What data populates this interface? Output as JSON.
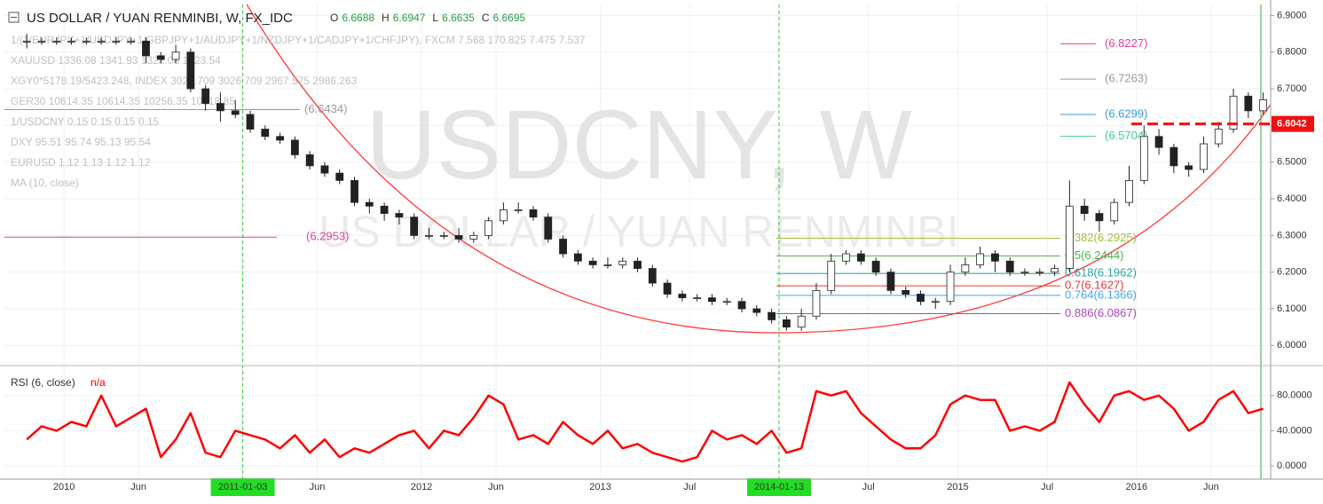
{
  "chart_data": [
    {
      "type": "candlestick",
      "title": "US DOLLAR / YUAN RENMINBI, W, FX_IDC",
      "ohlc": [
        {
          "label": "O",
          "value": 6.6688
        },
        {
          "label": "H",
          "value": 6.6947
        },
        {
          "label": "L",
          "value": 6.6635
        },
        {
          "label": "C",
          "value": 6.6695
        }
      ],
      "watermark": "USDCNY, W",
      "watermark_subtitle": "US DOLLAR / YUAN RENMINBI",
      "compare_legend": [
        "1/(1/EURJPY+1/USDJPY+1/GBPJPY+1/AUDJPY+1/NZDJPY+1/CADJPY+1/CHFJPY), FXCM  7.568  170.825  7.475  7.537",
        "XAUUSD  1336.08  1341.93  1322.08  1323.54",
        "XGY0*5178.19/5423.248, INDEX  3026.709  3026.709  2967.575  2986.263",
        "GER30  10614.35  10614.35  10256.35  10318.85",
        "1/USDCNY  0.15  0.15  0.15  0.15",
        "DXY  95.51  95.74  95.13  95.54",
        "EURUSD  1.12  1.13  1.12  1.12",
        "MA (10, close)"
      ],
      "x": [
        "2009-10",
        "2009-11",
        "2009-12",
        "2010-01",
        "2010-02",
        "2010-03",
        "2010-04",
        "2010-05",
        "2010-06",
        "2010-07",
        "2010-08",
        "2010-09",
        "2010-10",
        "2010-11",
        "2010-12",
        "2011-01",
        "2011-02",
        "2011-03",
        "2011-04",
        "2011-05",
        "2011-06",
        "2011-07",
        "2011-08",
        "2011-09",
        "2011-10",
        "2011-11",
        "2011-12",
        "2012-01",
        "2012-02",
        "2012-03",
        "2012-04",
        "2012-05",
        "2012-06",
        "2012-07",
        "2012-08",
        "2012-09",
        "2012-10",
        "2012-11",
        "2012-12",
        "2013-01",
        "2013-02",
        "2013-03",
        "2013-04",
        "2013-05",
        "2013-06",
        "2013-07",
        "2013-08",
        "2013-09",
        "2013-10",
        "2013-11",
        "2013-12",
        "2014-01",
        "2014-02",
        "2014-03",
        "2014-04",
        "2014-05",
        "2014-06",
        "2014-07",
        "2014-08",
        "2014-09",
        "2014-10",
        "2014-11",
        "2014-12",
        "2015-01",
        "2015-02",
        "2015-03",
        "2015-04",
        "2015-05",
        "2015-06",
        "2015-07",
        "2015-08",
        "2015-09",
        "2015-10",
        "2015-11",
        "2015-12",
        "2016-01",
        "2016-02",
        "2016-03",
        "2016-04",
        "2016-05",
        "2016-06",
        "2016-07",
        "2016-08",
        "2016-09"
      ],
      "open": [
        6.83,
        6.83,
        6.83,
        6.83,
        6.83,
        6.83,
        6.83,
        6.83,
        6.83,
        6.79,
        6.78,
        6.8,
        6.7,
        6.66,
        6.64,
        6.63,
        6.59,
        6.57,
        6.56,
        6.52,
        6.49,
        6.47,
        6.45,
        6.39,
        6.38,
        6.36,
        6.35,
        6.3,
        6.3,
        6.3,
        6.29,
        6.3,
        6.34,
        6.37,
        6.37,
        6.35,
        6.29,
        6.25,
        6.23,
        6.22,
        6.22,
        6.23,
        6.21,
        6.17,
        6.14,
        6.13,
        6.13,
        6.12,
        6.12,
        6.1,
        6.09,
        6.07,
        6.05,
        6.08,
        6.15,
        6.23,
        6.25,
        6.23,
        6.2,
        6.15,
        6.14,
        6.12,
        6.12,
        6.2,
        6.22,
        6.25,
        6.23,
        6.2,
        6.2,
        6.2,
        6.21,
        6.38,
        6.36,
        6.34,
        6.39,
        6.45,
        6.57,
        6.54,
        6.49,
        6.48,
        6.55,
        6.59,
        6.68,
        6.64
      ],
      "high": [
        6.85,
        6.84,
        6.84,
        6.84,
        6.84,
        6.84,
        6.84,
        6.84,
        6.84,
        6.8,
        6.82,
        6.81,
        6.71,
        6.69,
        6.67,
        6.64,
        6.6,
        6.58,
        6.57,
        6.53,
        6.5,
        6.48,
        6.46,
        6.4,
        6.39,
        6.37,
        6.36,
        6.32,
        6.31,
        6.32,
        6.31,
        6.35,
        6.39,
        6.39,
        6.38,
        6.36,
        6.3,
        6.26,
        6.24,
        6.24,
        6.24,
        6.24,
        6.22,
        6.18,
        6.15,
        6.14,
        6.14,
        6.13,
        6.13,
        6.11,
        6.1,
        6.08,
        6.1,
        6.17,
        6.25,
        6.26,
        6.26,
        6.24,
        6.21,
        6.16,
        6.15,
        6.13,
        6.22,
        6.24,
        6.27,
        6.26,
        6.24,
        6.21,
        6.21,
        6.22,
        6.45,
        6.4,
        6.37,
        6.4,
        6.49,
        6.6,
        6.59,
        6.55,
        6.5,
        6.57,
        6.61,
        6.7,
        6.69,
        6.69
      ],
      "low": [
        6.81,
        6.82,
        6.82,
        6.82,
        6.82,
        6.82,
        6.82,
        6.82,
        6.77,
        6.77,
        6.77,
        6.69,
        6.64,
        6.61,
        6.62,
        6.58,
        6.56,
        6.55,
        6.51,
        6.48,
        6.46,
        6.44,
        6.38,
        6.36,
        6.34,
        6.33,
        6.29,
        6.29,
        6.29,
        6.28,
        6.28,
        6.29,
        6.33,
        6.36,
        6.34,
        6.28,
        6.24,
        6.22,
        6.21,
        6.21,
        6.21,
        6.2,
        6.16,
        6.13,
        6.12,
        6.12,
        6.11,
        6.11,
        6.09,
        6.08,
        6.06,
        6.04,
        6.04,
        6.07,
        6.14,
        6.22,
        6.22,
        6.19,
        6.14,
        6.13,
        6.11,
        6.1,
        6.11,
        6.19,
        6.21,
        6.2,
        6.19,
        6.19,
        6.19,
        6.19,
        6.2,
        6.34,
        6.31,
        6.33,
        6.38,
        6.44,
        6.52,
        6.47,
        6.46,
        6.47,
        6.54,
        6.58,
        6.62,
        6.63
      ],
      "close": [
        6.83,
        6.83,
        6.83,
        6.83,
        6.83,
        6.83,
        6.83,
        6.83,
        6.79,
        6.78,
        6.8,
        6.7,
        6.66,
        6.64,
        6.63,
        6.59,
        6.57,
        6.56,
        6.52,
        6.49,
        6.47,
        6.45,
        6.39,
        6.38,
        6.36,
        6.35,
        6.3,
        6.3,
        6.3,
        6.29,
        6.3,
        6.34,
        6.37,
        6.37,
        6.35,
        6.29,
        6.25,
        6.23,
        6.22,
        6.22,
        6.23,
        6.21,
        6.17,
        6.14,
        6.13,
        6.13,
        6.12,
        6.12,
        6.1,
        6.09,
        6.07,
        6.05,
        6.08,
        6.15,
        6.23,
        6.25,
        6.23,
        6.2,
        6.15,
        6.14,
        6.12,
        6.12,
        6.2,
        6.22,
        6.25,
        6.23,
        6.2,
        6.2,
        6.2,
        6.21,
        6.38,
        6.36,
        6.34,
        6.39,
        6.45,
        6.57,
        6.54,
        6.49,
        6.48,
        6.55,
        6.59,
        6.68,
        6.64,
        6.67
      ],
      "up_color": "#ffffff",
      "down_color": "#222222",
      "border_color": "#222222",
      "xlim": [
        "2009-09",
        "2016-10"
      ],
      "xticks": [
        {
          "value": "2010-01",
          "label": "2010"
        },
        {
          "value": "2010-06",
          "label": "Jun"
        },
        {
          "value": "2011-01",
          "label": "2011-01-03"
        },
        {
          "value": "2011-06",
          "label": "Jun"
        },
        {
          "value": "2012-01",
          "label": "2012"
        },
        {
          "value": "2012-06",
          "label": "Jun"
        },
        {
          "value": "2013-01",
          "label": "2013"
        },
        {
          "value": "2013-07",
          "label": "Jul"
        },
        {
          "value": "2014-01",
          "label": "2014-01-13"
        },
        {
          "value": "2014-07",
          "label": "Jul"
        },
        {
          "value": "2015-01",
          "label": "2015"
        },
        {
          "value": "2015-07",
          "label": "Jul"
        },
        {
          "value": "2016-01",
          "label": "2016"
        },
        {
          "value": "2016-06",
          "label": "Jun"
        }
      ],
      "ylim": [
        5.95,
        6.93
      ],
      "yticks": [
        {
          "value": 6.9,
          "label": "6.9000"
        },
        {
          "value": 6.8,
          "label": "6.8000"
        },
        {
          "value": 6.7,
          "label": "6.7000"
        },
        {
          "value": 6.6,
          "label": "6.6000"
        },
        {
          "value": 6.5,
          "label": "6.5000"
        },
        {
          "value": 6.4,
          "label": "6.4000"
        },
        {
          "value": 6.3,
          "label": "6.3000"
        },
        {
          "value": 6.2,
          "label": "6.2000"
        },
        {
          "value": 6.1,
          "label": "6.1000"
        },
        {
          "value": 6.0,
          "label": "6.0000"
        }
      ],
      "grid": true,
      "vlines": [
        "2011-01",
        "2014-01"
      ],
      "vline_color": "#33cc33",
      "last_price": 6.6042,
      "last_price_color": "#ee1111",
      "levels": [
        {
          "value": 6.8227,
          "label": "(6.8227)",
          "color": "#e0409a"
        },
        {
          "value": 6.7263,
          "label": "(6.7263)",
          "color": "#999999"
        },
        {
          "value": 6.6299,
          "label": "(6.6299)",
          "color": "#3d9ad9"
        },
        {
          "value": 6.5704,
          "label": "(6.5704)",
          "color": "#3dcc8e"
        },
        {
          "value": 6.6434,
          "label": "(6.6434)",
          "color": "#999999"
        },
        {
          "value": 6.2953,
          "label": "(6.2953)",
          "color": "#e0409a"
        },
        {
          "value": 6.2925,
          "label": "0.382(6.2925)",
          "color": "#a0c040"
        },
        {
          "value": 6.2444,
          "label": "0.5(6.2444)",
          "color": "#4caf50"
        },
        {
          "value": 6.1962,
          "label": "0.618(6.1962)",
          "color": "#26a69a"
        },
        {
          "value": 6.1627,
          "label": "0.7(6.1627)",
          "color": "#e53935"
        },
        {
          "value": 6.1366,
          "label": "0.764(6.1366)",
          "color": "#42a5f5"
        },
        {
          "value": 6.0867,
          "label": "0.886(6.0867)",
          "color": "#ab47bc"
        }
      ]
    },
    {
      "type": "line",
      "title": "RSI (6, close)",
      "status": "n/a",
      "x": [
        "2009-10",
        "2009-11",
        "2009-12",
        "2010-01",
        "2010-02",
        "2010-03",
        "2010-04",
        "2010-05",
        "2010-06",
        "2010-07",
        "2010-08",
        "2010-09",
        "2010-10",
        "2010-11",
        "2010-12",
        "2011-01",
        "2011-02",
        "2011-03",
        "2011-04",
        "2011-05",
        "2011-06",
        "2011-07",
        "2011-08",
        "2011-09",
        "2011-10",
        "2011-11",
        "2011-12",
        "2012-01",
        "2012-02",
        "2012-03",
        "2012-04",
        "2012-05",
        "2012-06",
        "2012-07",
        "2012-08",
        "2012-09",
        "2012-10",
        "2012-11",
        "2012-12",
        "2013-01",
        "2013-02",
        "2013-03",
        "2013-04",
        "2013-05",
        "2013-06",
        "2013-07",
        "2013-08",
        "2013-09",
        "2013-10",
        "2013-11",
        "2013-12",
        "2014-01",
        "2014-02",
        "2014-03",
        "2014-04",
        "2014-05",
        "2014-06",
        "2014-07",
        "2014-08",
        "2014-09",
        "2014-10",
        "2014-11",
        "2014-12",
        "2015-01",
        "2015-02",
        "2015-03",
        "2015-04",
        "2015-05",
        "2015-06",
        "2015-07",
        "2015-08",
        "2015-09",
        "2015-10",
        "2015-11",
        "2015-12",
        "2016-01",
        "2016-02",
        "2016-03",
        "2016-04",
        "2016-05",
        "2016-06",
        "2016-07",
        "2016-08",
        "2016-09"
      ],
      "values": [
        30,
        45,
        40,
        50,
        45,
        80,
        45,
        55,
        65,
        10,
        30,
        60,
        15,
        10,
        40,
        35,
        30,
        20,
        35,
        15,
        30,
        10,
        20,
        15,
        25,
        35,
        40,
        20,
        40,
        35,
        55,
        80,
        70,
        30,
        35,
        25,
        50,
        35,
        25,
        40,
        20,
        25,
        15,
        10,
        5,
        10,
        40,
        30,
        35,
        25,
        40,
        15,
        20,
        85,
        80,
        85,
        60,
        45,
        30,
        20,
        20,
        35,
        70,
        80,
        75,
        75,
        40,
        45,
        40,
        50,
        95,
        70,
        50,
        80,
        85,
        75,
        80,
        65,
        40,
        50,
        75,
        85,
        60,
        65
      ],
      "color": "#ff0000",
      "ylim": [
        -13,
        111
      ],
      "yticks": [
        {
          "value": 80,
          "label": "80.0000"
        },
        {
          "value": 40,
          "label": "40.0000"
        },
        {
          "value": 0,
          "label": "0.0000"
        }
      ]
    }
  ]
}
